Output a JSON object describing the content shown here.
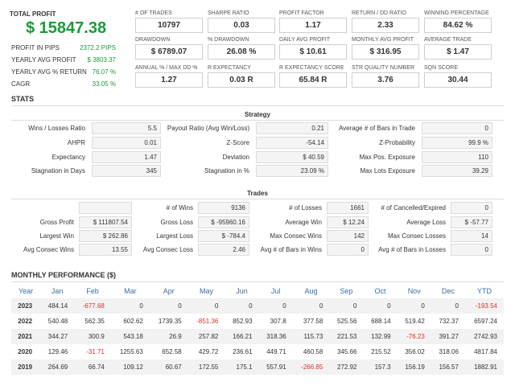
{
  "total_profit": {
    "label": "TOTAL PROFIT",
    "value": "$ 15847.38",
    "rows": [
      {
        "label": "PROFIT IN PIPS",
        "value": "2372.2 PIPS"
      },
      {
        "label": "YEARLY AVG PROFIT",
        "value": "$ 3803.37"
      },
      {
        "label": "YEARLY AVG % RETURN",
        "value": "76.07 %"
      },
      {
        "label": "CAGR",
        "value": "33.05 %"
      }
    ]
  },
  "boxes": [
    {
      "label": "# OF TRADES",
      "value": "10797"
    },
    {
      "label": "SHARPE RATIO",
      "value": "0.03"
    },
    {
      "label": "PROFIT FACTOR",
      "value": "1.17"
    },
    {
      "label": "RETURN / DD RATIO",
      "value": "2.33"
    },
    {
      "label": "WINNING PERCENTAGE",
      "value": "84.62 %"
    },
    {
      "label": "DRAWDOWN",
      "value": "$ 6789.07"
    },
    {
      "label": "% DRAWDOWN",
      "value": "26.08 %"
    },
    {
      "label": "DAILY AVG PROFIT",
      "value": "$ 10.61"
    },
    {
      "label": "MONTHLY AVG PROFIT",
      "value": "$ 316.95"
    },
    {
      "label": "AVERAGE TRADE",
      "value": "$ 1.47"
    },
    {
      "label": "ANNUAL % / MAX DD %",
      "value": "1.27"
    },
    {
      "label": "R EXPECTANCY",
      "value": "0.03 R"
    },
    {
      "label": "R EXPECTANCY SCORE",
      "value": "65.84 R"
    },
    {
      "label": "STR QUALITY NUMBER",
      "value": "3.76"
    },
    {
      "label": "SQN SCORE",
      "value": "30.44"
    }
  ],
  "stats_title": "STATS",
  "strategy": {
    "title": "Strategy",
    "rows": [
      [
        {
          "label": "Wins / Losses Ratio",
          "value": "5.5"
        },
        {
          "label": "Payout Ratio (Avg Win/Loss)",
          "value": "0.21"
        },
        {
          "label": "Average # of Bars in Trade",
          "value": "0"
        }
      ],
      [
        {
          "label": "AHPR",
          "value": "0.01"
        },
        {
          "label": "Z-Score",
          "value": "-54.14"
        },
        {
          "label": "Z-Probability",
          "value": "99.9 %"
        }
      ],
      [
        {
          "label": "Expectancy",
          "value": "1.47"
        },
        {
          "label": "Deviation",
          "value": "$ 40.59"
        },
        {
          "label": "Max Pos. Exposure",
          "value": "110"
        }
      ],
      [
        {
          "label": "Stagnation in Days",
          "value": "345"
        },
        {
          "label": "Stagnation in %",
          "value": "23.09 %"
        },
        {
          "label": "Max Lots Exposure",
          "value": "39.29"
        }
      ]
    ]
  },
  "trades": {
    "title": "Trades",
    "rows": [
      [
        {
          "label": "",
          "value": ""
        },
        {
          "label": "# of Wins",
          "value": "9136"
        },
        {
          "label": "# of Losses",
          "value": "1661"
        },
        {
          "label": "# of Cancelled/Expired",
          "value": "0"
        }
      ],
      [
        {
          "label": "Gross Profit",
          "value": "$ 111807.54"
        },
        {
          "label": "Gross Loss",
          "value": "$ -95960.16"
        },
        {
          "label": "Average Win",
          "value": "$ 12.24"
        },
        {
          "label": "Average Loss",
          "value": "$ -57.77"
        }
      ],
      [
        {
          "label": "Largest Win",
          "value": "$ 262.86"
        },
        {
          "label": "Largest Loss",
          "value": "$ -784.4"
        },
        {
          "label": "Max Consec Wins",
          "value": "142"
        },
        {
          "label": "Max Consec Losses",
          "value": "14"
        }
      ],
      [
        {
          "label": "Avg Consec Wins",
          "value": "13.55"
        },
        {
          "label": "Avg Consec Loss",
          "value": "2.46"
        },
        {
          "label": "Avg # of Bars in Wins",
          "value": "0"
        },
        {
          "label": "Avg # of Bars in Losses",
          "value": "0"
        }
      ]
    ]
  },
  "monthly": {
    "title": "MONTHLY PERFORMANCE ($)",
    "headers": [
      "Year",
      "Jan",
      "Feb",
      "Mar",
      "Apr",
      "May",
      "Jun",
      "Jul",
      "Aug",
      "Sep",
      "Oct",
      "Nov",
      "Dec",
      "YTD"
    ],
    "rows": [
      [
        "2023",
        "484.14",
        "-677.68",
        "0",
        "0",
        "0",
        "0",
        "0",
        "0",
        "0",
        "0",
        "0",
        "0",
        "-193.54"
      ],
      [
        "2022",
        "540.48",
        "562.35",
        "602.62",
        "1739.35",
        "-851.36",
        "852.93",
        "307.8",
        "377.58",
        "525.56",
        "688.14",
        "519.42",
        "732.37",
        "6597.24"
      ],
      [
        "2021",
        "344.27",
        "300.9",
        "543.18",
        "26.9",
        "257.82",
        "166.21",
        "318.36",
        "115.73",
        "221.53",
        "132.99",
        "-76.23",
        "391.27",
        "2742.93"
      ],
      [
        "2020",
        "129.46",
        "-31.71",
        "1255.63",
        "652.58",
        "429.72",
        "236.61",
        "449.71",
        "460.58",
        "345.66",
        "215.52",
        "356.02",
        "318.06",
        "4817.84"
      ],
      [
        "2019",
        "264.69",
        "66.74",
        "109.12",
        "60.67",
        "172.55",
        "175.1",
        "557.91",
        "-266.85",
        "272.92",
        "157.3",
        "156.19",
        "156.57",
        "1882.91"
      ]
    ]
  },
  "colors": {
    "positive": "#1a9a3a",
    "negative": "#d9302c",
    "header_blue": "#3a6ea5"
  }
}
